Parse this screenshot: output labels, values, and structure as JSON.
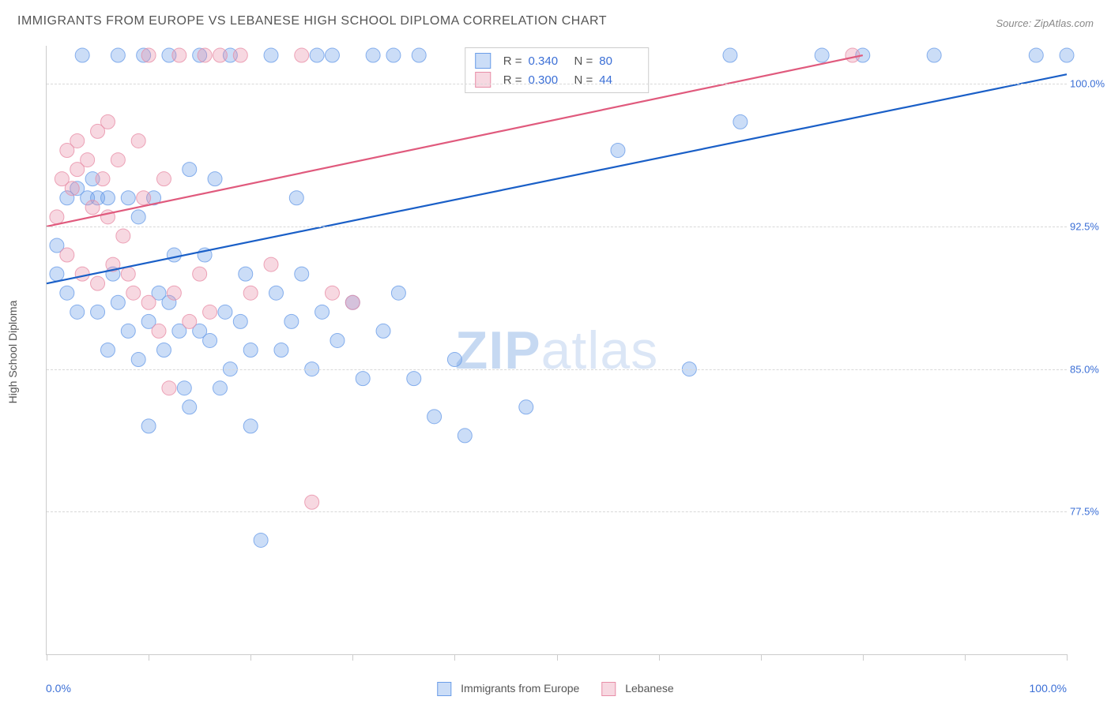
{
  "title": "IMMIGRANTS FROM EUROPE VS LEBANESE HIGH SCHOOL DIPLOMA CORRELATION CHART",
  "source": "Source: ZipAtlas.com",
  "y_axis_title": "High School Diploma",
  "watermark_bold": "ZIP",
  "watermark_rest": "atlas",
  "chart": {
    "type": "scatter",
    "background_color": "#ffffff",
    "grid_color": "#d8d8d8",
    "xlim": [
      0,
      100
    ],
    "ylim": [
      70,
      102
    ],
    "x_tick_positions": [
      0,
      10,
      20,
      30,
      40,
      50,
      60,
      70,
      80,
      90,
      100
    ],
    "x_min_label": "0.0%",
    "x_max_label": "100.0%",
    "y_ticks": [
      {
        "value": 77.5,
        "label": "77.5%"
      },
      {
        "value": 85.0,
        "label": "85.0%"
      },
      {
        "value": 92.5,
        "label": "92.5%"
      },
      {
        "value": 100.0,
        "label": "100.0%"
      }
    ],
    "marker_radius": 9,
    "marker_fill_opacity": 0.35,
    "marker_stroke_opacity": 0.8,
    "trend_line_width": 2.2,
    "series": [
      {
        "name": "Immigrants from Europe",
        "color": "#6b9de8",
        "line_color": "#1a5fc7",
        "r_value": "0.340",
        "n_value": "80",
        "trend": {
          "x1": 0,
          "y1": 89.5,
          "x2": 100,
          "y2": 100.5
        },
        "points": [
          [
            1,
            90
          ],
          [
            1,
            91.5
          ],
          [
            2,
            94
          ],
          [
            2,
            89
          ],
          [
            3,
            94.5
          ],
          [
            3,
            88
          ],
          [
            3.5,
            101.5
          ],
          [
            4,
            94
          ],
          [
            4.5,
            95
          ],
          [
            5,
            94
          ],
          [
            5,
            88
          ],
          [
            6,
            86
          ],
          [
            6,
            94
          ],
          [
            6.5,
            90
          ],
          [
            7,
            88.5
          ],
          [
            7,
            101.5
          ],
          [
            8,
            87
          ],
          [
            8,
            94
          ],
          [
            9,
            85.5
          ],
          [
            9,
            93
          ],
          [
            9.5,
            101.5
          ],
          [
            10,
            82
          ],
          [
            10,
            87.5
          ],
          [
            10.5,
            94
          ],
          [
            11,
            89
          ],
          [
            11.5,
            86
          ],
          [
            12,
            101.5
          ],
          [
            12,
            88.5
          ],
          [
            12.5,
            91
          ],
          [
            13,
            87
          ],
          [
            13.5,
            84
          ],
          [
            14,
            83
          ],
          [
            14,
            95.5
          ],
          [
            15,
            87
          ],
          [
            15,
            101.5
          ],
          [
            15.5,
            91
          ],
          [
            16,
            86.5
          ],
          [
            16.5,
            95
          ],
          [
            17,
            84
          ],
          [
            17.5,
            88
          ],
          [
            18,
            85
          ],
          [
            18,
            101.5
          ],
          [
            19,
            87.5
          ],
          [
            19.5,
            90
          ],
          [
            20,
            86
          ],
          [
            20,
            82
          ],
          [
            21,
            76
          ],
          [
            22,
            101.5
          ],
          [
            22.5,
            89
          ],
          [
            23,
            86
          ],
          [
            24,
            87.5
          ],
          [
            24.5,
            94
          ],
          [
            25,
            90
          ],
          [
            26,
            85
          ],
          [
            26.5,
            101.5
          ],
          [
            27,
            88
          ],
          [
            28,
            101.5
          ],
          [
            28.5,
            86.5
          ],
          [
            30,
            88.5
          ],
          [
            31,
            84.5
          ],
          [
            32,
            101.5
          ],
          [
            33,
            87
          ],
          [
            34,
            101.5
          ],
          [
            34.5,
            89
          ],
          [
            36,
            84.5
          ],
          [
            36.5,
            101.5
          ],
          [
            38,
            82.5
          ],
          [
            40,
            85.5
          ],
          [
            41,
            81.5
          ],
          [
            47,
            83
          ],
          [
            52,
            101.5
          ],
          [
            56,
            96.5
          ],
          [
            63,
            85
          ],
          [
            67,
            101.5
          ],
          [
            68,
            98
          ],
          [
            76,
            101.5
          ],
          [
            80,
            101.5
          ],
          [
            87,
            101.5
          ],
          [
            97,
            101.5
          ],
          [
            100,
            101.5
          ]
        ]
      },
      {
        "name": "Lebanese",
        "color": "#e88fa8",
        "line_color": "#e05a7d",
        "r_value": "0.300",
        "n_value": "44",
        "trend": {
          "x1": 0,
          "y1": 92.5,
          "x2": 80,
          "y2": 101.5
        },
        "points": [
          [
            1,
            93
          ],
          [
            1.5,
            95
          ],
          [
            2,
            96.5
          ],
          [
            2,
            91
          ],
          [
            2.5,
            94.5
          ],
          [
            3,
            97
          ],
          [
            3,
            95.5
          ],
          [
            3.5,
            90
          ],
          [
            4,
            96
          ],
          [
            4.5,
            93.5
          ],
          [
            5,
            97.5
          ],
          [
            5,
            89.5
          ],
          [
            5.5,
            95
          ],
          [
            6,
            93
          ],
          [
            6,
            98
          ],
          [
            6.5,
            90.5
          ],
          [
            7,
            96
          ],
          [
            7.5,
            92
          ],
          [
            8,
            90
          ],
          [
            8.5,
            89
          ],
          [
            9,
            97
          ],
          [
            9.5,
            94
          ],
          [
            10,
            88.5
          ],
          [
            10,
            101.5
          ],
          [
            11,
            87
          ],
          [
            11.5,
            95
          ],
          [
            12,
            84
          ],
          [
            12.5,
            89
          ],
          [
            13,
            101.5
          ],
          [
            14,
            87.5
          ],
          [
            15,
            90
          ],
          [
            15.5,
            101.5
          ],
          [
            16,
            88
          ],
          [
            17,
            101.5
          ],
          [
            19,
            101.5
          ],
          [
            20,
            89
          ],
          [
            22,
            90.5
          ],
          [
            25,
            101.5
          ],
          [
            26,
            78
          ],
          [
            28,
            89
          ],
          [
            30,
            88.5
          ],
          [
            44,
            101.5
          ],
          [
            58,
            101.5
          ],
          [
            79,
            101.5
          ]
        ]
      }
    ],
    "legend_labels": {
      "series1": "Immigrants from Europe",
      "series2": "Lebanese",
      "r_label": "R =",
      "n_label": "N ="
    }
  }
}
